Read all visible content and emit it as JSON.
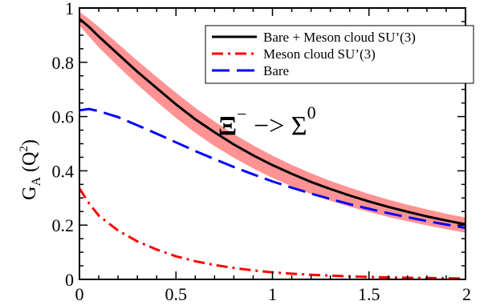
{
  "chart_data": {
    "type": "line",
    "title": "",
    "xlabel": "",
    "ylabel": {
      "base": "G",
      "sub": "A",
      "open": " (Q",
      "sup": "2",
      "close": ")"
    },
    "xlim": [
      0,
      2
    ],
    "ylim": [
      0,
      1
    ],
    "xticks": [
      0,
      0.5,
      1,
      1.5,
      2
    ],
    "xtick_labels": [
      "0",
      "0.5",
      "1",
      "1.5",
      "2"
    ],
    "yticks": [
      0,
      0.2,
      0.4,
      0.6,
      0.8,
      1
    ],
    "ytick_labels": [
      "0",
      "0.2",
      "0.4",
      "0.6",
      "0.8",
      "1"
    ],
    "grid": false,
    "legend_position": "top-right",
    "annotation": {
      "parts": [
        "Ξ",
        "−",
        " ",
        "−> Σ",
        "0"
      ],
      "text": "Ξ− −> Σ0"
    },
    "x": [
      0,
      0.05,
      0.1,
      0.2,
      0.3,
      0.4,
      0.5,
      0.6,
      0.7,
      0.8,
      0.9,
      1.0,
      1.1,
      1.2,
      1.3,
      1.4,
      1.5,
      1.6,
      1.7,
      1.8,
      1.9,
      2.0
    ],
    "series": [
      {
        "name": "Bare + Meson cloud SU’(3)",
        "color": "#000000",
        "dash": "solid",
        "values": [
          0.96,
          0.93,
          0.895,
          0.83,
          0.765,
          0.705,
          0.645,
          0.59,
          0.542,
          0.497,
          0.457,
          0.421,
          0.389,
          0.359,
          0.333,
          0.309,
          0.287,
          0.267,
          0.249,
          0.232,
          0.217,
          0.203
        ]
      },
      {
        "name": "Meson cloud SU’(3)",
        "color": "#ff0000",
        "dash": "dash-dot",
        "values": [
          0.335,
          0.28,
          0.235,
          0.18,
          0.14,
          0.11,
          0.085,
          0.067,
          0.053,
          0.042,
          0.033,
          0.026,
          0.021,
          0.017,
          0.014,
          0.011,
          0.009,
          0.007,
          0.006,
          0.005,
          0.004,
          0.003
        ]
      },
      {
        "name": "Bare",
        "color": "#0000ff",
        "dash": "dashed",
        "values": [
          0.623,
          0.628,
          0.62,
          0.598,
          0.568,
          0.537,
          0.505,
          0.473,
          0.443,
          0.414,
          0.387,
          0.361,
          0.338,
          0.316,
          0.296,
          0.277,
          0.26,
          0.244,
          0.229,
          0.215,
          0.202,
          0.19
        ]
      }
    ],
    "band": {
      "color": "#ff8080",
      "upper": [
        0.985,
        0.96,
        0.93,
        0.868,
        0.806,
        0.746,
        0.688,
        0.632,
        0.582,
        0.535,
        0.494,
        0.456,
        0.422,
        0.391,
        0.363,
        0.338,
        0.315,
        0.294,
        0.275,
        0.258,
        0.242,
        0.228
      ],
      "lower": [
        0.935,
        0.895,
        0.855,
        0.785,
        0.718,
        0.655,
        0.595,
        0.54,
        0.491,
        0.448,
        0.409,
        0.374,
        0.343,
        0.315,
        0.29,
        0.268,
        0.248,
        0.23,
        0.214,
        0.199,
        0.185,
        0.172
      ]
    }
  }
}
